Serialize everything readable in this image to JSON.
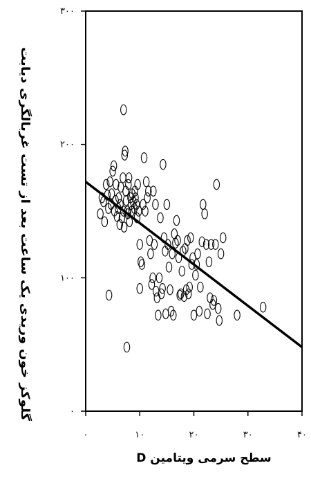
{
  "chart_data": {
    "type": "scatter",
    "xlabel": "سطح سرمی ویتامین D",
    "ylabel": "گلوکز خون وریدی یک ساعت بعد از تست غربالگری دیابت",
    "xlim": [
      0,
      40
    ],
    "ylim": [
      0,
      300
    ],
    "x_ticks": [
      0,
      10,
      20,
      30,
      40
    ],
    "x_tick_labels": [
      "۰",
      "۱۰",
      "۲۰",
      "۳۰",
      "۴۰"
    ],
    "y_ticks": [
      0,
      100,
      200,
      300
    ],
    "y_tick_labels": [
      "۰",
      "۱۰۰",
      "۲۰۰",
      "۳۰۰"
    ],
    "grid": false,
    "marker": "open-ellipse",
    "fit_line": {
      "x": [
        0,
        40
      ],
      "y": [
        172,
        48
      ]
    },
    "points": [
      [
        2.7,
        148
      ],
      [
        3.0,
        160
      ],
      [
        3.3,
        157
      ],
      [
        3.5,
        142
      ],
      [
        3.8,
        170
      ],
      [
        4.0,
        162
      ],
      [
        4.2,
        152
      ],
      [
        4.3,
        87
      ],
      [
        4.5,
        172
      ],
      [
        4.7,
        155
      ],
      [
        4.8,
        163
      ],
      [
        5.0,
        180
      ],
      [
        5.2,
        184
      ],
      [
        5.3,
        150
      ],
      [
        5.5,
        158
      ],
      [
        5.6,
        170
      ],
      [
        5.8,
        146
      ],
      [
        6.0,
        152
      ],
      [
        6.1,
        160
      ],
      [
        6.3,
        140
      ],
      [
        6.4,
        155
      ],
      [
        6.5,
        168
      ],
      [
        6.7,
        145
      ],
      [
        6.9,
        175
      ],
      [
        7.0,
        226
      ],
      [
        7.0,
        150
      ],
      [
        7.1,
        138
      ],
      [
        7.2,
        192
      ],
      [
        7.3,
        195
      ],
      [
        7.4,
        165
      ],
      [
        7.5,
        158
      ],
      [
        7.6,
        48
      ],
      [
        7.7,
        150
      ],
      [
        7.8,
        148
      ],
      [
        7.9,
        170
      ],
      [
        8.0,
        175
      ],
      [
        8.1,
        142
      ],
      [
        8.3,
        160
      ],
      [
        8.4,
        155
      ],
      [
        8.5,
        150
      ],
      [
        8.6,
        163
      ],
      [
        8.8,
        157
      ],
      [
        9.0,
        152
      ],
      [
        9.1,
        165
      ],
      [
        9.2,
        160
      ],
      [
        9.4,
        155
      ],
      [
        9.5,
        145
      ],
      [
        9.6,
        170
      ],
      [
        9.8,
        150
      ],
      [
        10.0,
        125
      ],
      [
        10.0,
        92
      ],
      [
        10.2,
        112
      ],
      [
        10.4,
        110
      ],
      [
        10.6,
        155
      ],
      [
        10.8,
        190
      ],
      [
        11.0,
        150
      ],
      [
        11.2,
        172
      ],
      [
        11.4,
        160
      ],
      [
        11.6,
        165
      ],
      [
        11.8,
        128
      ],
      [
        12.0,
        118
      ],
      [
        12.2,
        95
      ],
      [
        12.4,
        100
      ],
      [
        12.5,
        165
      ],
      [
        12.7,
        125
      ],
      [
        12.9,
        155
      ],
      [
        13.0,
        90
      ],
      [
        13.2,
        85
      ],
      [
        13.4,
        72
      ],
      [
        13.6,
        100
      ],
      [
        13.8,
        145
      ],
      [
        14.0,
        88
      ],
      [
        14.2,
        92
      ],
      [
        14.3,
        185
      ],
      [
        14.5,
        130
      ],
      [
        14.7,
        120
      ],
      [
        14.8,
        73
      ],
      [
        15.0,
        155
      ],
      [
        15.2,
        125
      ],
      [
        15.4,
        108
      ],
      [
        15.6,
        91
      ],
      [
        15.8,
        75
      ],
      [
        16.0,
        118
      ],
      [
        16.2,
        72
      ],
      [
        16.4,
        133
      ],
      [
        16.6,
        126
      ],
      [
        16.8,
        143
      ],
      [
        17.0,
        128
      ],
      [
        17.2,
        115
      ],
      [
        17.4,
        87
      ],
      [
        17.6,
        88
      ],
      [
        17.8,
        105
      ],
      [
        18.0,
        120
      ],
      [
        18.2,
        86
      ],
      [
        18.4,
        122
      ],
      [
        18.6,
        91
      ],
      [
        18.8,
        128
      ],
      [
        19.0,
        88
      ],
      [
        19.2,
        93
      ],
      [
        19.4,
        130
      ],
      [
        19.6,
        110
      ],
      [
        19.8,
        115
      ],
      [
        20.0,
        72
      ],
      [
        20.3,
        102
      ],
      [
        20.5,
        110
      ],
      [
        20.7,
        118
      ],
      [
        21.0,
        75
      ],
      [
        21.2,
        93
      ],
      [
        21.5,
        127
      ],
      [
        21.7,
        155
      ],
      [
        22.0,
        148
      ],
      [
        22.3,
        125
      ],
      [
        22.5,
        73
      ],
      [
        22.8,
        112
      ],
      [
        23.0,
        85
      ],
      [
        23.2,
        125
      ],
      [
        23.5,
        80
      ],
      [
        23.7,
        83
      ],
      [
        24.0,
        125
      ],
      [
        24.2,
        170
      ],
      [
        24.5,
        77
      ],
      [
        24.7,
        68
      ],
      [
        25.0,
        118
      ],
      [
        25.4,
        130
      ],
      [
        28.0,
        72
      ],
      [
        32.8,
        78
      ]
    ]
  }
}
